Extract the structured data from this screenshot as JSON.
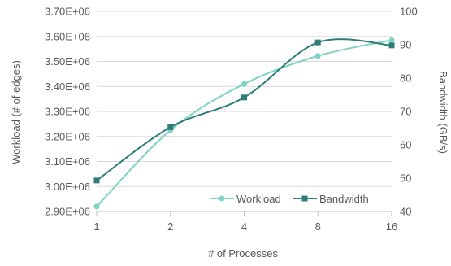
{
  "chart_data": {
    "type": "line",
    "xlabel": "# of Processes",
    "ylabel_left": "Workload (# of edges)",
    "ylabel_right": "Bandwidth (GB/s)",
    "categories": [
      "1",
      "2",
      "4",
      "8",
      "16"
    ],
    "y_left_ticks": [
      "2.90E+06",
      "3.00E+06",
      "3.10E+06",
      "3.20E+06",
      "3.30E+06",
      "3.40E+06",
      "3.50E+06",
      "3.60E+06",
      "3.70E+06"
    ],
    "y_left_range": [
      2900000,
      3700000
    ],
    "y_right_ticks": [
      "40",
      "50",
      "60",
      "70",
      "80",
      "90",
      "100"
    ],
    "y_right_range": [
      40,
      100
    ],
    "grid": "horizontal",
    "legend": "bottom-right",
    "series": [
      {
        "name": "Workload",
        "axis": "left",
        "color": "#7fd3c4",
        "marker": "circle",
        "values": [
          2920000,
          3225000,
          3410000,
          3522000,
          3585000
        ]
      },
      {
        "name": "Bandwidth",
        "axis": "right",
        "color": "#2e7d78",
        "marker": "square",
        "values": [
          49.3,
          65.3,
          74.2,
          90.7,
          89.8
        ]
      }
    ]
  }
}
